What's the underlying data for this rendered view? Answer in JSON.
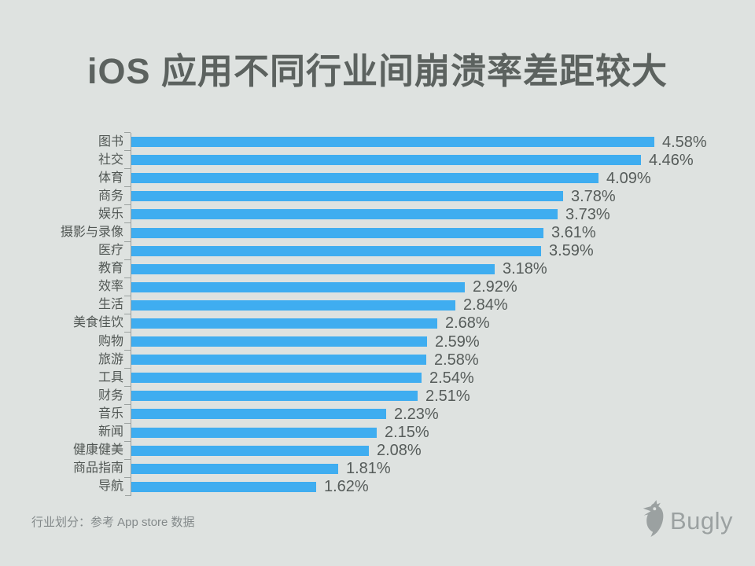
{
  "title": "iOS 应用不同行业间崩溃率差距较大",
  "chart_data": {
    "type": "bar",
    "orientation": "horizontal",
    "title": "iOS 应用不同行业间崩溃率差距较大",
    "xlabel": "",
    "ylabel": "",
    "xlim": [
      0,
      4.8
    ],
    "grid": false,
    "legend": "none",
    "value_suffix": "%",
    "bar_color": "#3fadf0",
    "categories": [
      "图书",
      "社交",
      "体育",
      "商务",
      "娱乐",
      "摄影与录像",
      "医疗",
      "教育",
      "效率",
      "生活",
      "美食佳饮",
      "购物",
      "旅游",
      "工具",
      "财务",
      "音乐",
      "新闻",
      "健康健美",
      "商品指南",
      "导航"
    ],
    "values": [
      4.58,
      4.46,
      4.09,
      3.78,
      3.73,
      3.61,
      3.59,
      3.18,
      2.92,
      2.84,
      2.68,
      2.59,
      2.58,
      2.54,
      2.51,
      2.23,
      2.15,
      2.08,
      1.81,
      1.62
    ],
    "value_labels": [
      "4.58%",
      "4.46%",
      "4.09%",
      "3.78%",
      "3.73%",
      "3.61%",
      "3.59%",
      "3.18%",
      "2.92%",
      "2.84%",
      "2.68%",
      "2.59%",
      "2.58%",
      "2.54%",
      "2.51%",
      "2.23%",
      "2.15%",
      "2.08%",
      "1.81%",
      "1.62%"
    ]
  },
  "footer": {
    "source_note": "行业划分：参考 App store 数据",
    "logo_text": "Bugly"
  },
  "colors": {
    "background": "#dee2e0",
    "bar": "#3fadf0",
    "title_text": "#5c625f",
    "label_text": "#515754",
    "value_text": "#565c5a",
    "muted_text": "#83898a",
    "logo": "#9ba1a1",
    "axis": "#9aa09e"
  }
}
